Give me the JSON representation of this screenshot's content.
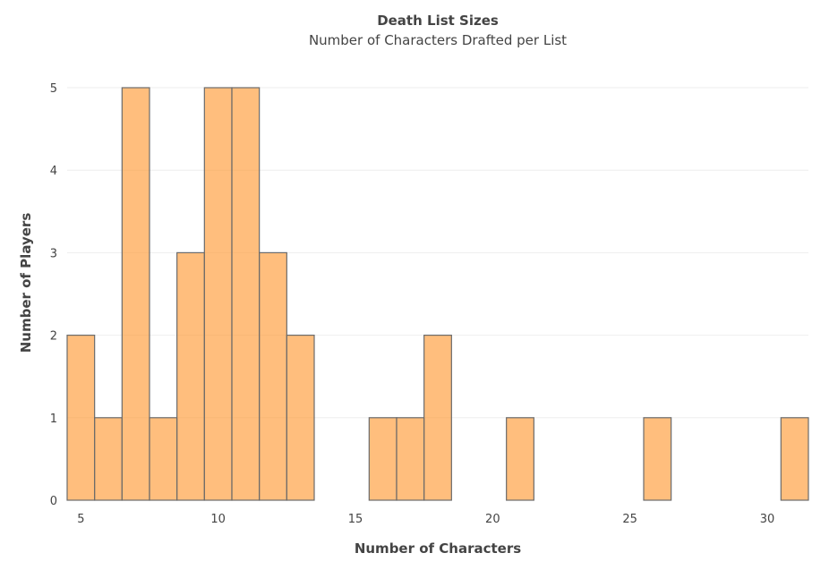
{
  "chart_data": {
    "type": "bar",
    "title": "Death List Sizes",
    "subtitle": "Number of Characters Drafted per List",
    "xlabel": "Number of Characters",
    "ylabel": "Number of Players",
    "x": [
      5,
      6,
      7,
      8,
      9,
      10,
      11,
      12,
      13,
      14,
      15,
      16,
      17,
      18,
      19,
      20,
      21,
      22,
      23,
      24,
      25,
      26,
      27,
      28,
      29,
      30,
      31
    ],
    "values": [
      2,
      1,
      5,
      1,
      3,
      5,
      5,
      3,
      2,
      0,
      0,
      1,
      1,
      2,
      0,
      0,
      1,
      0,
      0,
      0,
      0,
      1,
      0,
      0,
      0,
      0,
      1
    ],
    "xlim": [
      4.5,
      31.5
    ],
    "ylim": [
      0,
      5
    ],
    "x_ticks": [
      5,
      10,
      15,
      20,
      25,
      30
    ],
    "y_ticks": [
      0,
      1,
      2,
      3,
      4,
      5
    ],
    "grid": true,
    "bar_color": "#ff9933",
    "bar_outline_color": "#6b6b6b"
  }
}
